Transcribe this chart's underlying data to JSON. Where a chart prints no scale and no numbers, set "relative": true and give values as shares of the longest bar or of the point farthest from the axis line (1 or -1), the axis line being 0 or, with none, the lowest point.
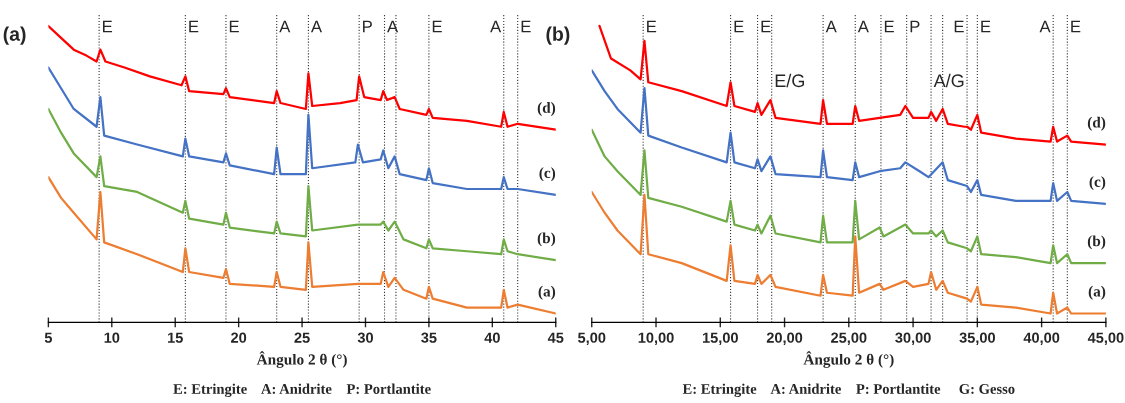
{
  "chart_data": [
    {
      "type": "line",
      "title": "(a)",
      "xlabel": "Ângulo 2 θ (°)",
      "relative": true,
      "tick_labels": "x",
      "grid": false,
      "legend": false,
      "marker": "none",
      "line_style": "solid",
      "xlim": [
        5,
        45
      ],
      "xticks": [
        5,
        10,
        15,
        20,
        25,
        30,
        35,
        40,
        45
      ],
      "series": [
        {
          "name": "(a)",
          "color": "#ed7d31",
          "x": [
            5,
            6,
            7,
            8.8,
            9.1,
            9.4,
            12,
            15.6,
            15.8,
            16.1,
            18.8,
            19,
            19.3,
            22.8,
            23,
            23.3,
            25.3,
            25.5,
            25.8,
            29.4,
            31.2,
            31.4,
            31.8,
            32.3,
            33,
            34.8,
            35,
            35.3,
            38,
            40.7,
            40.9,
            41.2,
            42,
            45
          ],
          "values": [
            0.49,
            0.42,
            0.37,
            0.28,
            0.44,
            0.27,
            0.23,
            0.17,
            0.25,
            0.17,
            0.15,
            0.18,
            0.13,
            0.12,
            0.17,
            0.12,
            0.11,
            0.27,
            0.12,
            0.13,
            0.13,
            0.17,
            0.12,
            0.15,
            0.11,
            0.08,
            0.12,
            0.08,
            0.05,
            0.05,
            0.11,
            0.05,
            0.06,
            0.03
          ]
        },
        {
          "name": "(b)",
          "color": "#70ad47",
          "x": [
            5,
            6,
            7,
            8.8,
            9.1,
            9.4,
            12,
            15.6,
            15.8,
            16.1,
            18.8,
            19,
            19.3,
            22.8,
            23,
            23.3,
            25.3,
            25.5,
            25.8,
            29.4,
            31.2,
            31.4,
            31.8,
            32.3,
            33,
            34.8,
            35,
            35.3,
            38,
            40.7,
            40.9,
            41.2,
            42,
            45
          ],
          "values": [
            0.72,
            0.64,
            0.57,
            0.49,
            0.56,
            0.46,
            0.44,
            0.37,
            0.41,
            0.35,
            0.33,
            0.37,
            0.32,
            0.3,
            0.34,
            0.3,
            0.29,
            0.46,
            0.31,
            0.33,
            0.33,
            0.34,
            0.31,
            0.34,
            0.28,
            0.25,
            0.28,
            0.25,
            0.24,
            0.23,
            0.28,
            0.24,
            0.23,
            0.21
          ]
        },
        {
          "name": "(c)",
          "color": "#4472c4",
          "x": [
            5,
            6,
            7,
            8.8,
            9.1,
            9.4,
            12,
            15.6,
            15.8,
            16.1,
            18.8,
            19,
            19.3,
            22.8,
            23,
            23.3,
            25.3,
            25.5,
            25.8,
            29.2,
            29.4,
            29.8,
            31.2,
            31.4,
            31.8,
            32.3,
            32.7,
            34.8,
            35,
            35.3,
            38,
            40.7,
            40.9,
            41.2,
            42,
            45
          ],
          "values": [
            0.86,
            0.79,
            0.72,
            0.66,
            0.76,
            0.63,
            0.6,
            0.56,
            0.62,
            0.56,
            0.54,
            0.57,
            0.53,
            0.5,
            0.59,
            0.5,
            0.5,
            0.7,
            0.52,
            0.54,
            0.6,
            0.54,
            0.55,
            0.58,
            0.52,
            0.56,
            0.5,
            0.48,
            0.52,
            0.47,
            0.45,
            0.45,
            0.49,
            0.45,
            0.45,
            0.43
          ]
        },
        {
          "name": "(d)",
          "color": "#ff0000",
          "x": [
            5,
            6,
            7,
            8,
            8.8,
            9.1,
            9.5,
            11,
            13,
            15.5,
            15.8,
            16.1,
            18.8,
            19,
            19.3,
            22.8,
            23,
            23.3,
            25.3,
            25.5,
            25.8,
            28,
            29.3,
            29.5,
            29.9,
            31.2,
            31.4,
            31.7,
            32.3,
            32.7,
            34.8,
            35,
            35.3,
            38,
            40.7,
            40.9,
            41.2,
            42,
            45
          ],
          "values": [
            1.0,
            0.96,
            0.92,
            0.9,
            0.88,
            0.92,
            0.88,
            0.86,
            0.83,
            0.8,
            0.83,
            0.78,
            0.77,
            0.79,
            0.76,
            0.74,
            0.78,
            0.74,
            0.72,
            0.84,
            0.73,
            0.74,
            0.75,
            0.83,
            0.76,
            0.75,
            0.78,
            0.75,
            0.76,
            0.72,
            0.7,
            0.72,
            0.69,
            0.68,
            0.66,
            0.71,
            0.66,
            0.67,
            0.65
          ]
        }
      ],
      "ref_lines": [
        {
          "axis": "x",
          "value": 9,
          "label": "E"
        },
        {
          "axis": "x",
          "value": 15.8,
          "label": "E"
        },
        {
          "axis": "x",
          "value": 19,
          "label": "E"
        },
        {
          "axis": "x",
          "value": 23,
          "label": "A"
        },
        {
          "axis": "x",
          "value": 25.5,
          "label": "A"
        },
        {
          "axis": "x",
          "value": 29.5,
          "label": "P"
        },
        {
          "axis": "x",
          "value": 31.5,
          "label": "A"
        },
        {
          "axis": "x",
          "value": 32.4
        },
        {
          "axis": "x",
          "value": 35,
          "label": "E"
        },
        {
          "axis": "x",
          "value": 40.9,
          "label": "A"
        },
        {
          "axis": "x",
          "value": 42,
          "label": "E"
        }
      ],
      "annotations": [
        "E: Etringite    A: Anidrite    P: Portlantite"
      ]
    },
    {
      "type": "line",
      "title": "(b)",
      "xlabel": "Ângulo 2 θ (°)",
      "relative": true,
      "tick_labels": "x",
      "grid": false,
      "legend": false,
      "marker": "none",
      "line_style": "solid",
      "xlim": [
        5,
        45
      ],
      "xticks": [
        {
          "value": 5,
          "label": "5,00"
        },
        {
          "value": 10,
          "label": "10,00"
        },
        {
          "value": 15,
          "label": "15,00"
        },
        {
          "value": 20,
          "label": "20,00"
        },
        {
          "value": 25,
          "label": "25,00"
        },
        {
          "value": 30,
          "label": "30,00"
        },
        {
          "value": 35,
          "label": "35,00"
        },
        {
          "value": 40,
          "label": "40,00"
        },
        {
          "value": 45,
          "label": "45,00"
        }
      ],
      "series": [
        {
          "name": "(a)",
          "color": "#ed7d31",
          "x": [
            5,
            6,
            7,
            8.8,
            9.1,
            9.4,
            12,
            15.5,
            15.8,
            16.1,
            17.7,
            17.9,
            18.2,
            18.9,
            19.3,
            22.8,
            23,
            23.3,
            25.3,
            25.5,
            25.8,
            27.4,
            27.7,
            29.4,
            30,
            31.2,
            31.4,
            31.8,
            32.3,
            32.7,
            34.2,
            34.5,
            35,
            35.3,
            38,
            40.7,
            40.9,
            41.2,
            42,
            42.3,
            45
          ],
          "values": [
            0.44,
            0.37,
            0.31,
            0.23,
            0.43,
            0.23,
            0.2,
            0.14,
            0.26,
            0.14,
            0.13,
            0.16,
            0.13,
            0.16,
            0.12,
            0.09,
            0.16,
            0.1,
            0.09,
            0.29,
            0.1,
            0.13,
            0.11,
            0.14,
            0.12,
            0.13,
            0.17,
            0.11,
            0.14,
            0.1,
            0.08,
            0.07,
            0.12,
            0.06,
            0.05,
            0.03,
            0.1,
            0.03,
            0.05,
            0.03,
            0.03
          ]
        },
        {
          "name": "(b)",
          "color": "#70ad47",
          "x": [
            5,
            6,
            7,
            8.8,
            9.1,
            9.4,
            12,
            15.5,
            15.8,
            16.1,
            17.7,
            17.9,
            18.2,
            18.9,
            19.3,
            22.8,
            23,
            23.3,
            25.3,
            25.5,
            25.8,
            27.4,
            27.7,
            29.4,
            30,
            31.2,
            31.4,
            31.8,
            32.3,
            32.7,
            34.2,
            34.5,
            35,
            35.3,
            38,
            40.7,
            40.9,
            41.2,
            42,
            42.3,
            45
          ],
          "values": [
            0.65,
            0.56,
            0.51,
            0.43,
            0.58,
            0.42,
            0.39,
            0.34,
            0.41,
            0.33,
            0.31,
            0.33,
            0.3,
            0.36,
            0.3,
            0.27,
            0.36,
            0.27,
            0.27,
            0.41,
            0.28,
            0.32,
            0.29,
            0.33,
            0.3,
            0.3,
            0.31,
            0.29,
            0.31,
            0.27,
            0.25,
            0.24,
            0.29,
            0.23,
            0.22,
            0.2,
            0.26,
            0.2,
            0.23,
            0.2,
            0.2
          ]
        },
        {
          "name": "(c)",
          "color": "#4472c4",
          "x": [
            5,
            6,
            7,
            8.8,
            9.1,
            9.4,
            12,
            15.5,
            15.8,
            16.1,
            17.7,
            17.9,
            18.2,
            18.9,
            19.3,
            22.8,
            23,
            23.3,
            25.3,
            25.5,
            25.8,
            27.4,
            29,
            29.4,
            30.5,
            31.2,
            32.3,
            32.7,
            34.2,
            34.5,
            35,
            35.3,
            38,
            40.7,
            40.9,
            41.2,
            42,
            42.3,
            45
          ],
          "values": [
            0.85,
            0.78,
            0.72,
            0.64,
            0.79,
            0.63,
            0.59,
            0.54,
            0.64,
            0.54,
            0.52,
            0.55,
            0.51,
            0.56,
            0.5,
            0.49,
            0.58,
            0.49,
            0.48,
            0.54,
            0.49,
            0.51,
            0.52,
            0.54,
            0.51,
            0.49,
            0.54,
            0.48,
            0.46,
            0.44,
            0.48,
            0.43,
            0.41,
            0.41,
            0.47,
            0.41,
            0.44,
            0.41,
            0.4
          ]
        },
        {
          "name": "(d)",
          "color": "#ff0000",
          "x": [
            5.6,
            6.5,
            8,
            8.8,
            9.1,
            9.4,
            12,
            15.5,
            15.8,
            16.1,
            17.7,
            17.9,
            18.2,
            18.9,
            19.3,
            22.8,
            23,
            23.3,
            25.3,
            25.5,
            25.8,
            27.4,
            29,
            29.4,
            30,
            31.2,
            31.4,
            31.8,
            32.3,
            32.7,
            34,
            34.2,
            34.5,
            35,
            35.3,
            38,
            40.7,
            40.9,
            41.2,
            42,
            42.3,
            45
          ],
          "values": [
            1.0,
            0.89,
            0.85,
            0.82,
            0.95,
            0.81,
            0.78,
            0.73,
            0.81,
            0.73,
            0.71,
            0.74,
            0.7,
            0.75,
            0.69,
            0.67,
            0.75,
            0.67,
            0.67,
            0.73,
            0.68,
            0.69,
            0.7,
            0.73,
            0.69,
            0.69,
            0.71,
            0.68,
            0.72,
            0.67,
            0.66,
            0.66,
            0.65,
            0.7,
            0.64,
            0.62,
            0.61,
            0.66,
            0.61,
            0.63,
            0.61,
            0.6
          ]
        }
      ],
      "ref_lines": [
        {
          "axis": "x",
          "value": 9,
          "label": "E"
        },
        {
          "axis": "x",
          "value": 15.8,
          "label": "E"
        },
        {
          "axis": "x",
          "value": 17.9,
          "label": "E"
        },
        {
          "axis": "x",
          "value": 19
        },
        {
          "axis": "x",
          "value": 23,
          "label": "A"
        },
        {
          "axis": "x",
          "value": 25.5,
          "label": "A"
        },
        {
          "axis": "x",
          "value": 27.5,
          "label": "E"
        },
        {
          "axis": "x",
          "value": 29.5,
          "label": "P"
        },
        {
          "axis": "x",
          "value": 31.4
        },
        {
          "axis": "x",
          "value": 32.3
        },
        {
          "axis": "x",
          "value": 34.2,
          "label": "E"
        },
        {
          "axis": "x",
          "value": 35,
          "label": "E"
        },
        {
          "axis": "x",
          "value": 40.9,
          "label": "A"
        },
        {
          "axis": "x",
          "value": 42,
          "label": "E"
        }
      ],
      "annotations": [
        {
          "text": "E/G",
          "x": 19,
          "y": 0.81
        },
        {
          "text": "A/G",
          "x": 31.4,
          "y": 0.81
        },
        "E: Etringite    A: Anidrite    P: Portlantite     G: Gesso"
      ]
    }
  ]
}
